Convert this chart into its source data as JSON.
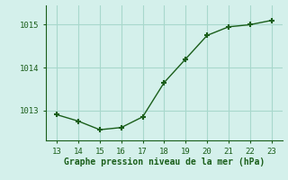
{
  "x": [
    13,
    14,
    15,
    16,
    17,
    18,
    19,
    20,
    21,
    22,
    23
  ],
  "y": [
    1012.9,
    1012.75,
    1012.55,
    1012.6,
    1012.85,
    1013.65,
    1014.2,
    1014.75,
    1014.95,
    1015.0,
    1015.1
  ],
  "line_color": "#1a5e1a",
  "marker_color": "#1a5e1a",
  "bg_color": "#d4f0eb",
  "grid_color": "#a8d8cc",
  "xlabel": "Graphe pression niveau de la mer (hPa)",
  "xlabel_color": "#1a5e1a",
  "tick_color": "#1a5e1a",
  "xlim": [
    12.5,
    23.5
  ],
  "ylim": [
    1012.3,
    1015.45
  ],
  "yticks": [
    1013,
    1014,
    1015
  ],
  "xticks": [
    13,
    14,
    15,
    16,
    17,
    18,
    19,
    20,
    21,
    22,
    23
  ],
  "spine_color": "#1a5e1a",
  "outer_bg": "#d4f0eb"
}
